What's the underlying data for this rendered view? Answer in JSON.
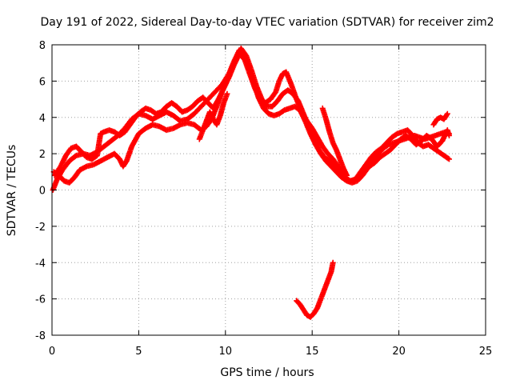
{
  "chart_data": {
    "type": "scatter",
    "title": "Day 191 of 2022, Sidereal Day-to-day VTEC variation (SDTVAR) for receiver zim2",
    "xlabel": "GPS time / hours",
    "ylabel": "SDTVAR / TECUs",
    "xlim": [
      0,
      25
    ],
    "ylim": [
      -8,
      8
    ],
    "xticks": [
      "0",
      "5",
      "10",
      "15",
      "20",
      "25"
    ],
    "yticks": [
      "-8",
      "-6",
      "-4",
      "-2",
      "0",
      "2",
      "4",
      "6",
      "8"
    ],
    "grid": true,
    "marker": "+",
    "series": [
      {
        "name": "SDTVAR",
        "color": "#ff0000",
        "tracks": [
          [
            [
              0.05,
              0.0
            ],
            [
              0.3,
              0.6
            ],
            [
              0.6,
              1.1
            ],
            [
              1.0,
              1.6
            ],
            [
              1.4,
              1.9
            ],
            [
              1.8,
              2.0
            ],
            [
              2.2,
              1.9
            ],
            [
              2.6,
              2.1
            ],
            [
              3.0,
              2.4
            ],
            [
              3.4,
              2.7
            ],
            [
              3.8,
              3.0
            ],
            [
              4.2,
              3.4
            ],
            [
              4.6,
              3.9
            ],
            [
              5.0,
              4.2
            ],
            [
              5.4,
              4.1
            ],
            [
              5.8,
              3.9
            ],
            [
              6.2,
              4.1
            ],
            [
              6.6,
              4.3
            ],
            [
              7.0,
              4.1
            ],
            [
              7.4,
              3.8
            ],
            [
              7.8,
              3.9
            ],
            [
              8.2,
              4.2
            ],
            [
              8.6,
              4.6
            ],
            [
              9.0,
              5.0
            ],
            [
              9.4,
              5.4
            ],
            [
              9.8,
              5.8
            ],
            [
              10.2,
              6.4
            ],
            [
              10.5,
              7.1
            ],
            [
              10.8,
              7.7
            ],
            [
              11.0,
              7.6
            ],
            [
              11.3,
              6.9
            ],
            [
              11.6,
              6.0
            ],
            [
              11.9,
              5.1
            ],
            [
              12.2,
              4.5
            ],
            [
              12.5,
              4.2
            ],
            [
              12.8,
              4.1
            ],
            [
              13.1,
              4.2
            ],
            [
              13.4,
              4.4
            ],
            [
              13.7,
              4.5
            ],
            [
              14.0,
              4.6
            ],
            [
              14.3,
              4.4
            ],
            [
              14.6,
              3.8
            ],
            [
              14.9,
              3.1
            ],
            [
              15.2,
              2.5
            ],
            [
              15.5,
              2.0
            ],
            [
              15.8,
              1.6
            ],
            [
              16.1,
              1.3
            ],
            [
              16.4,
              1.0
            ],
            [
              16.7,
              0.7
            ],
            [
              17.0,
              0.5
            ],
            [
              17.3,
              0.4
            ],
            [
              17.6,
              0.5
            ],
            [
              17.9,
              0.8
            ],
            [
              18.2,
              1.2
            ],
            [
              18.5,
              1.6
            ],
            [
              18.8,
              2.0
            ],
            [
              19.1,
              2.3
            ],
            [
              19.4,
              2.5
            ],
            [
              19.7,
              2.6
            ],
            [
              20.0,
              2.7
            ],
            [
              20.3,
              2.8
            ],
            [
              20.6,
              2.9
            ],
            [
              20.9,
              3.0
            ],
            [
              21.2,
              2.9
            ],
            [
              21.5,
              2.8
            ],
            [
              21.8,
              2.9
            ],
            [
              22.1,
              3.0
            ],
            [
              22.4,
              3.1
            ],
            [
              22.7,
              3.2
            ],
            [
              22.9,
              3.1
            ]
          ],
          [
            [
              0.1,
              1.0
            ],
            [
              0.4,
              0.8
            ],
            [
              0.7,
              0.5
            ],
            [
              1.0,
              0.4
            ],
            [
              1.3,
              0.7
            ],
            [
              1.6,
              1.1
            ],
            [
              2.0,
              1.3
            ],
            [
              2.4,
              1.4
            ],
            [
              2.8,
              1.6
            ],
            [
              3.2,
              1.8
            ],
            [
              3.6,
              2.0
            ],
            [
              3.9,
              1.7
            ],
            [
              4.1,
              1.3
            ],
            [
              4.3,
              1.6
            ],
            [
              4.6,
              2.4
            ],
            [
              5.0,
              3.1
            ],
            [
              5.4,
              3.4
            ],
            [
              5.8,
              3.6
            ],
            [
              6.2,
              3.5
            ],
            [
              6.6,
              3.3
            ],
            [
              7.0,
              3.4
            ],
            [
              7.4,
              3.6
            ],
            [
              7.8,
              3.7
            ],
            [
              8.2,
              3.6
            ],
            [
              8.6,
              3.3
            ],
            [
              8.9,
              3.5
            ],
            [
              9.2,
              3.9
            ],
            [
              9.5,
              4.6
            ],
            [
              9.8,
              5.4
            ],
            [
              10.1,
              6.1
            ],
            [
              10.4,
              6.8
            ],
            [
              10.7,
              7.4
            ],
            [
              10.9,
              7.8
            ],
            [
              11.2,
              7.4
            ],
            [
              11.5,
              6.6
            ],
            [
              11.8,
              5.7
            ],
            [
              12.1,
              5.0
            ],
            [
              12.4,
              4.6
            ],
            [
              12.7,
              4.6
            ],
            [
              13.0,
              4.9
            ],
            [
              13.3,
              5.3
            ],
            [
              13.6,
              5.5
            ],
            [
              13.9,
              5.3
            ],
            [
              14.2,
              4.9
            ],
            [
              14.5,
              4.2
            ],
            [
              14.8,
              3.5
            ],
            [
              15.1,
              2.8
            ],
            [
              15.4,
              2.2
            ],
            [
              15.7,
              1.8
            ],
            [
              16.0,
              1.6
            ],
            [
              16.3,
              1.3
            ],
            [
              16.6,
              1.0
            ],
            [
              16.9,
              0.7
            ],
            [
              17.2,
              0.5
            ],
            [
              17.5,
              0.6
            ],
            [
              17.8,
              1.0
            ],
            [
              18.1,
              1.4
            ],
            [
              18.4,
              1.8
            ],
            [
              18.7,
              2.1
            ],
            [
              19.0,
              2.3
            ],
            [
              19.3,
              2.6
            ],
            [
              19.6,
              2.9
            ],
            [
              19.9,
              3.1
            ],
            [
              20.2,
              3.2
            ],
            [
              20.5,
              3.3
            ],
            [
              20.8,
              3.0
            ],
            [
              21.1,
              2.6
            ],
            [
              21.4,
              2.4
            ],
            [
              21.7,
              2.5
            ],
            [
              22.0,
              2.3
            ],
            [
              22.3,
              2.1
            ],
            [
              22.6,
              1.9
            ],
            [
              22.9,
              1.7
            ]
          ],
          [
            [
              0.15,
              0.8
            ],
            [
              0.5,
              1.3
            ],
            [
              0.8,
              1.9
            ],
            [
              1.1,
              2.3
            ],
            [
              1.4,
              2.4
            ],
            [
              1.7,
              2.1
            ],
            [
              2.0,
              1.8
            ],
            [
              2.3,
              1.7
            ],
            [
              2.6,
              1.9
            ],
            [
              2.8,
              3.1
            ],
            [
              3.0,
              3.2
            ],
            [
              3.3,
              3.3
            ],
            [
              3.6,
              3.2
            ],
            [
              3.9,
              3.0
            ],
            [
              4.2,
              3.2
            ],
            [
              4.5,
              3.6
            ],
            [
              4.8,
              4.0
            ],
            [
              5.1,
              4.3
            ],
            [
              5.4,
              4.5
            ],
            [
              5.7,
              4.4
            ],
            [
              6.0,
              4.2
            ],
            [
              6.3,
              4.3
            ],
            [
              6.6,
              4.6
            ],
            [
              6.9,
              4.8
            ],
            [
              7.2,
              4.6
            ],
            [
              7.5,
              4.3
            ],
            [
              7.8,
              4.4
            ],
            [
              8.1,
              4.6
            ],
            [
              8.4,
              4.9
            ],
            [
              8.7,
              5.1
            ],
            [
              9.0,
              4.8
            ],
            [
              9.3,
              4.5
            ],
            [
              9.6,
              5.0
            ],
            [
              9.9,
              5.6
            ],
            [
              10.2,
              6.2
            ],
            [
              10.5,
              6.9
            ],
            [
              10.8,
              7.5
            ],
            [
              11.1,
              7.2
            ],
            [
              11.4,
              6.4
            ],
            [
              11.7,
              5.6
            ],
            [
              12.0,
              5.0
            ],
            [
              12.3,
              4.8
            ],
            [
              12.6,
              5.0
            ],
            [
              12.9,
              5.4
            ],
            [
              13.1,
              6.0
            ],
            [
              13.3,
              6.4
            ],
            [
              13.5,
              6.5
            ],
            [
              13.8,
              5.8
            ],
            [
              14.1,
              5.0
            ],
            [
              14.4,
              4.3
            ],
            [
              14.7,
              3.8
            ],
            [
              15.0,
              3.4
            ],
            [
              15.3,
              2.9
            ],
            [
              15.6,
              2.4
            ],
            [
              15.9,
              2.0
            ],
            [
              16.2,
              1.7
            ],
            [
              16.5,
              1.3
            ],
            [
              16.8,
              0.8
            ],
            [
              17.1,
              0.5
            ],
            [
              17.4,
              0.5
            ],
            [
              17.7,
              0.7
            ],
            [
              18.0,
              1.0
            ],
            [
              18.3,
              1.3
            ],
            [
              18.6,
              1.5
            ],
            [
              18.9,
              1.8
            ],
            [
              19.2,
              2.0
            ],
            [
              19.5,
              2.2
            ],
            [
              19.8,
              2.5
            ],
            [
              20.1,
              2.8
            ],
            [
              20.4,
              3.0
            ],
            [
              20.7,
              2.8
            ],
            [
              21.0,
              2.5
            ],
            [
              21.3,
              2.7
            ],
            [
              21.6,
              3.0
            ],
            [
              21.9,
              2.8
            ],
            [
              22.2,
              2.4
            ],
            [
              22.5,
              2.7
            ],
            [
              22.8,
              3.3
            ],
            [
              22.9,
              3.0
            ]
          ],
          [
            [
              8.5,
              2.8
            ],
            [
              8.7,
              3.3
            ],
            [
              8.9,
              3.8
            ],
            [
              9.1,
              4.3
            ],
            [
              9.3,
              3.9
            ],
            [
              9.5,
              3.6
            ],
            [
              9.7,
              4.1
            ],
            [
              9.9,
              4.8
            ],
            [
              10.1,
              5.3
            ]
          ],
          [
            [
              15.6,
              4.5
            ],
            [
              15.8,
              3.9
            ],
            [
              16.0,
              3.2
            ],
            [
              16.2,
              2.6
            ],
            [
              16.4,
              2.2
            ],
            [
              16.6,
              1.7
            ],
            [
              16.8,
              1.2
            ],
            [
              17.0,
              0.8
            ]
          ],
          [
            [
              22.0,
              3.6
            ],
            [
              22.2,
              3.9
            ],
            [
              22.4,
              4.0
            ],
            [
              22.6,
              3.9
            ],
            [
              22.8,
              4.2
            ]
          ],
          [
            [
              14.1,
              -6.1
            ],
            [
              14.3,
              -6.3
            ],
            [
              14.5,
              -6.6
            ],
            [
              14.7,
              -6.9
            ],
            [
              14.9,
              -7.0
            ],
            [
              15.1,
              -6.8
            ],
            [
              15.3,
              -6.5
            ],
            [
              15.5,
              -6.0
            ],
            [
              15.7,
              -5.5
            ],
            [
              15.9,
              -5.0
            ],
            [
              16.1,
              -4.5
            ],
            [
              16.2,
              -4.0
            ]
          ]
        ]
      }
    ]
  }
}
